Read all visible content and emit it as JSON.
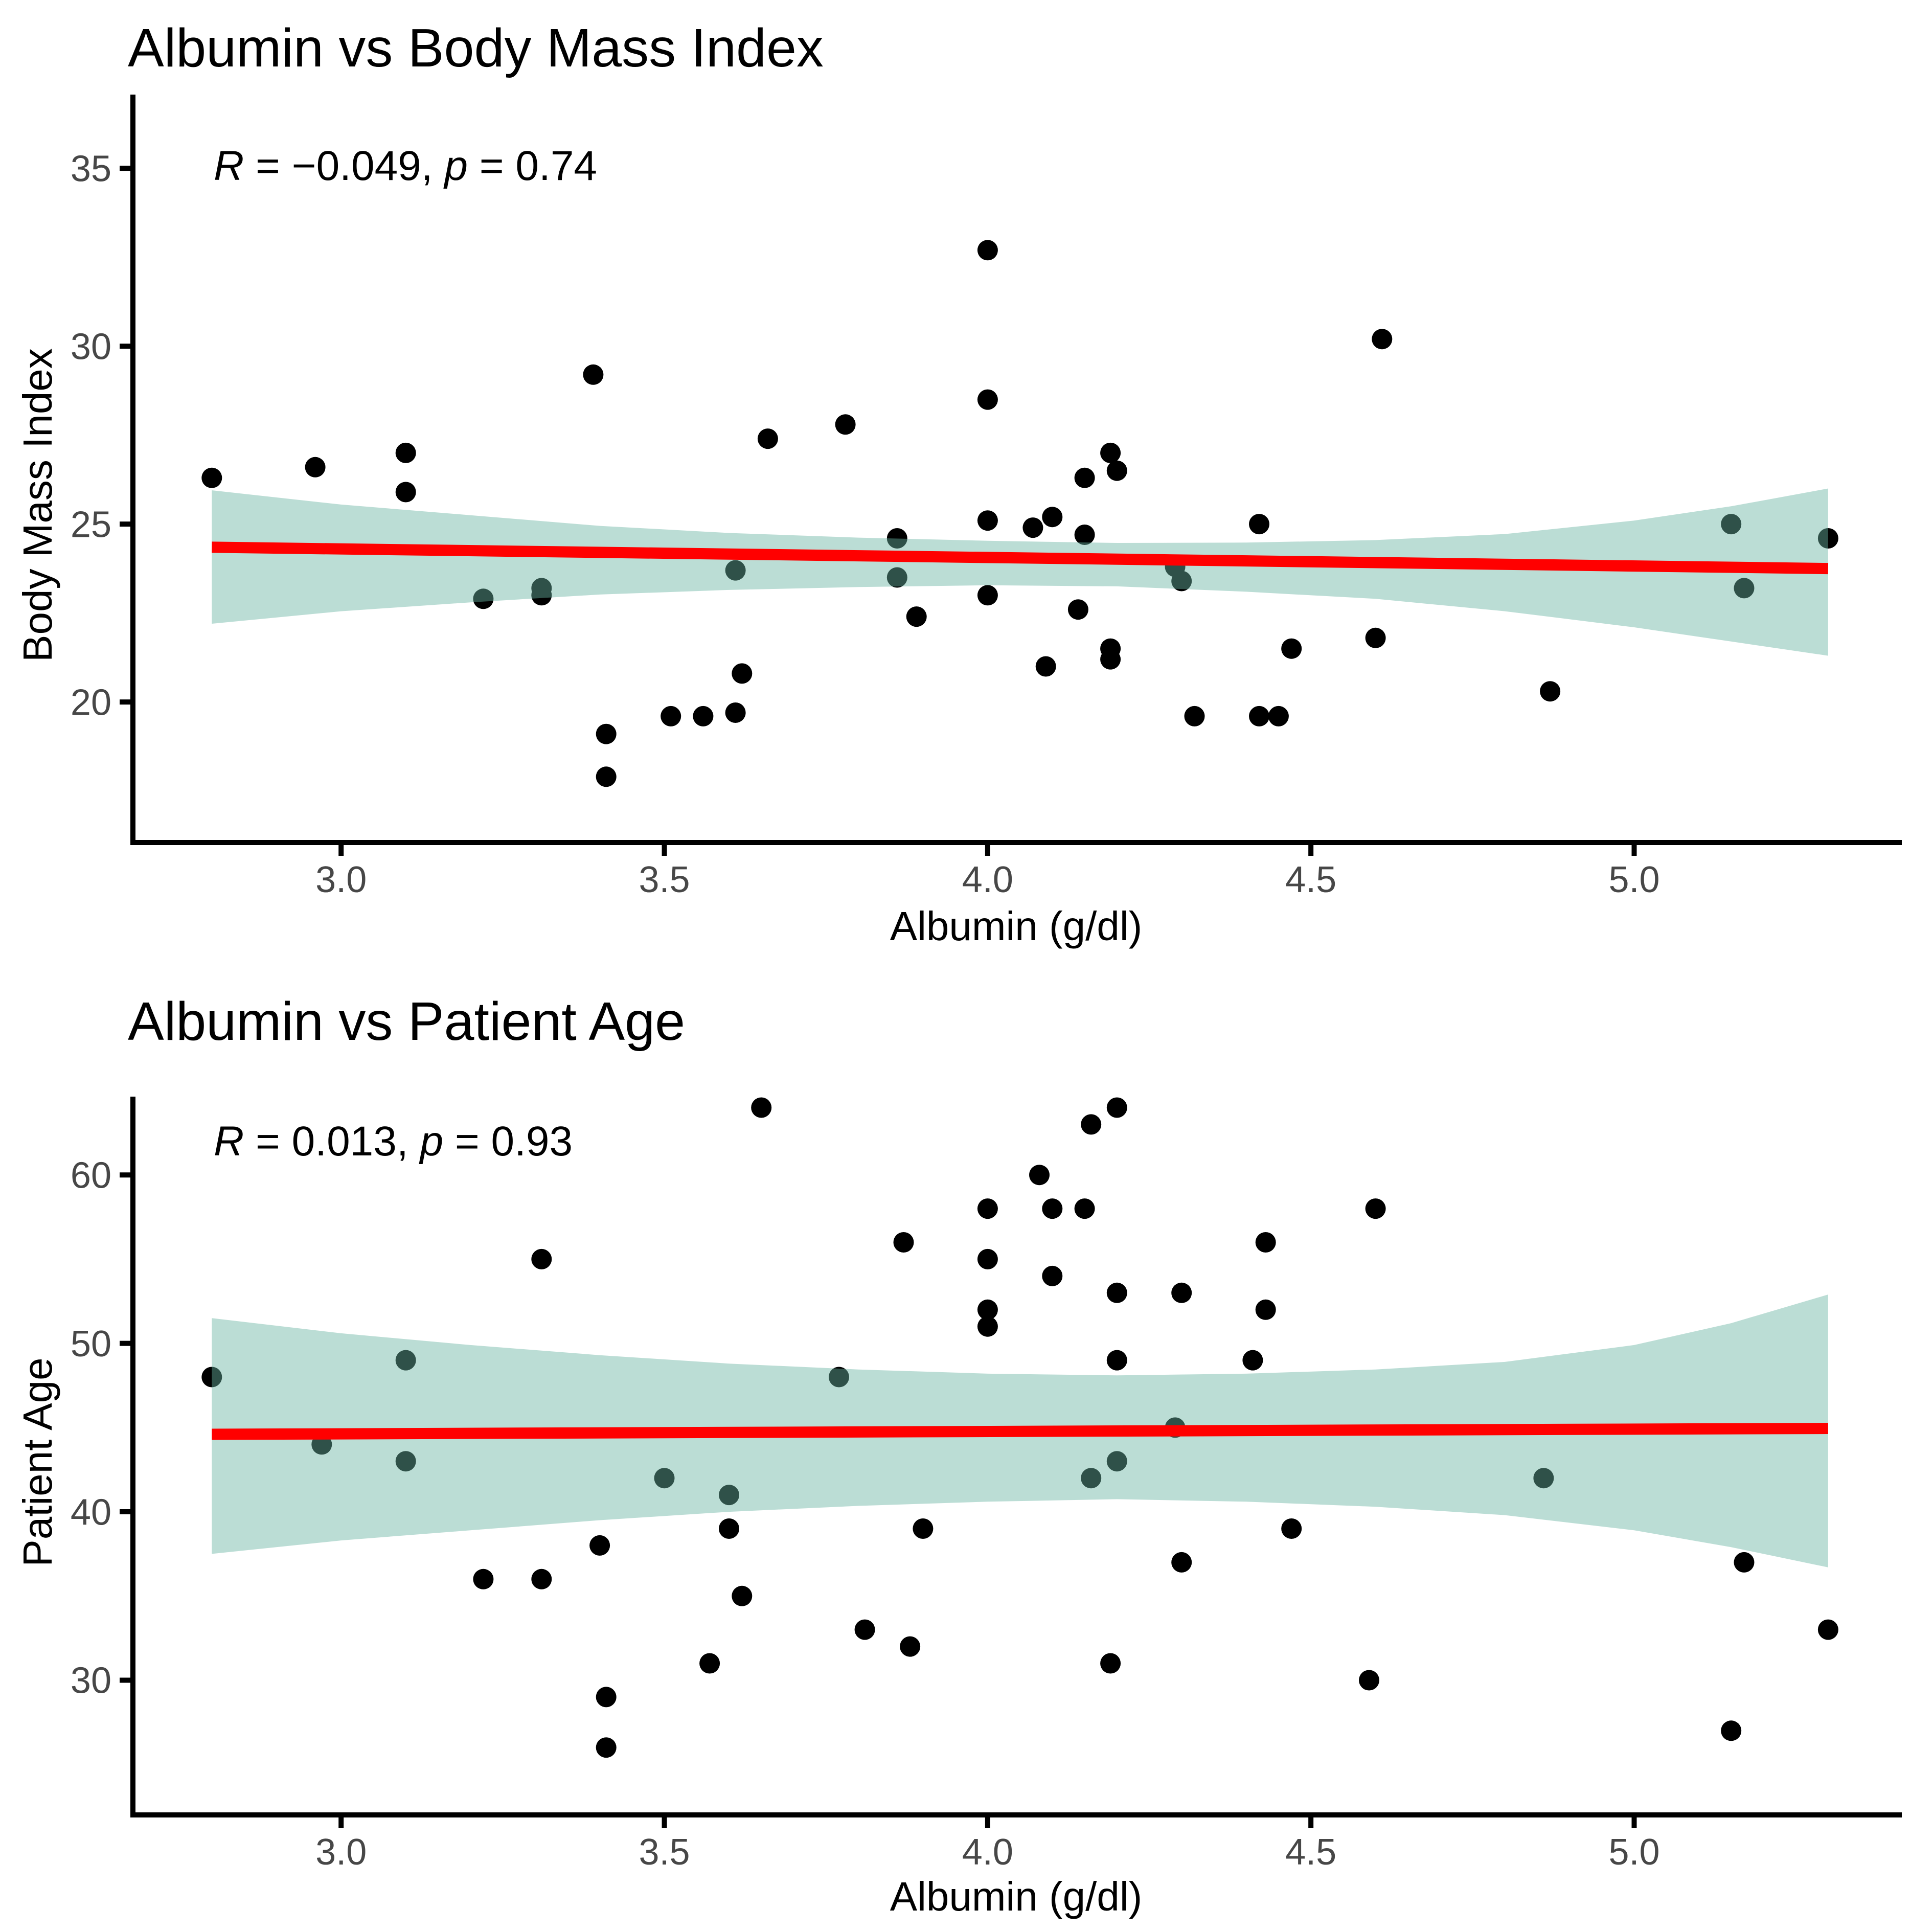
{
  "styles": {
    "background": "#ffffff",
    "point_color": "#000000",
    "axis_color": "#000000",
    "tick_label_color": "#474747",
    "band_fill": "#69b3a2",
    "trend_color": "#ff0000"
  },
  "chart_data": [
    {
      "type": "scatter",
      "title": "Albumin vs Body Mass Index",
      "xlabel": "Albumin (g/dl)",
      "ylabel": "Body Mass Index",
      "R": -0.049,
      "p": 0.74,
      "annotation": {
        "r_label": "R",
        "r_eq": "= −0.049,",
        "p_label": "p",
        "p_eq": "= 0.74"
      },
      "xlim": [
        2.678,
        5.41
      ],
      "ylim": [
        16.05,
        37.0
      ],
      "grid": false,
      "legend": null,
      "x_ticks": {
        "values": [
          3.0,
          3.5,
          4.0,
          4.5,
          5.0
        ],
        "labels": [
          "3.0",
          "3.5",
          "4.0",
          "4.5",
          "5.0"
        ]
      },
      "y_ticks": {
        "values": [
          20,
          25,
          30,
          35
        ],
        "labels": [
          "20",
          "25",
          "30",
          "35"
        ]
      },
      "points": [
        [
          2.8,
          26.3
        ],
        [
          2.96,
          26.6
        ],
        [
          3.1,
          27.0
        ],
        [
          3.1,
          25.9
        ],
        [
          3.22,
          22.9
        ],
        [
          3.31,
          23.2
        ],
        [
          3.31,
          23.0
        ],
        [
          3.39,
          29.2
        ],
        [
          3.41,
          19.1
        ],
        [
          3.41,
          17.9
        ],
        [
          3.51,
          19.6
        ],
        [
          3.56,
          19.6
        ],
        [
          3.61,
          23.7
        ],
        [
          3.61,
          19.7
        ],
        [
          3.62,
          20.8
        ],
        [
          3.66,
          27.4
        ],
        [
          3.78,
          27.8
        ],
        [
          3.86,
          24.6
        ],
        [
          3.86,
          23.5
        ],
        [
          3.89,
          22.4
        ],
        [
          4.0,
          32.7
        ],
        [
          4.0,
          28.5
        ],
        [
          4.0,
          25.1
        ],
        [
          4.0,
          23.0
        ],
        [
          4.07,
          24.9
        ],
        [
          4.1,
          25.2
        ],
        [
          4.09,
          21.0
        ],
        [
          4.14,
          22.6
        ],
        [
          4.15,
          24.7
        ],
        [
          4.15,
          26.3
        ],
        [
          4.19,
          21.5
        ],
        [
          4.19,
          21.2
        ],
        [
          4.19,
          27.0
        ],
        [
          4.2,
          26.5
        ],
        [
          4.29,
          23.8
        ],
        [
          4.3,
          23.4
        ],
        [
          4.32,
          19.6
        ],
        [
          4.42,
          25.0
        ],
        [
          4.42,
          19.6
        ],
        [
          4.45,
          19.6
        ],
        [
          4.47,
          21.5
        ],
        [
          4.6,
          21.8
        ],
        [
          4.61,
          30.2
        ],
        [
          4.87,
          20.3
        ],
        [
          5.15,
          25.0
        ],
        [
          5.17,
          23.2
        ],
        [
          5.3,
          24.6
        ]
      ],
      "trend_line": {
        "x": [
          2.8,
          5.3
        ],
        "y": [
          24.35,
          23.75
        ]
      },
      "confidence_band": {
        "opacity": 0.45,
        "x": [
          2.8,
          3.0,
          3.2,
          3.4,
          3.6,
          3.8,
          4.0,
          4.2,
          4.4,
          4.6,
          4.8,
          5.0,
          5.15,
          5.3
        ],
        "upper": [
          25.95,
          25.55,
          25.25,
          24.95,
          24.75,
          24.62,
          24.53,
          24.47,
          24.48,
          24.55,
          24.72,
          25.1,
          25.5,
          26.0
        ],
        "lower": [
          22.2,
          22.55,
          22.8,
          23.02,
          23.15,
          23.23,
          23.28,
          23.25,
          23.1,
          22.9,
          22.55,
          22.1,
          21.7,
          21.3
        ]
      }
    },
    {
      "type": "scatter",
      "title": "Albumin vs Patient Age",
      "xlabel": "Albumin (g/dl)",
      "ylabel": "Patient Age",
      "R": 0.013,
      "p": 0.93,
      "annotation": {
        "r_label": "R",
        "r_eq": "= 0.013,",
        "p_label": "p",
        "p_eq": "= 0.93"
      },
      "xlim": [
        2.678,
        5.41
      ],
      "ylim": [
        22.0,
        64.5
      ],
      "grid": false,
      "legend": null,
      "x_ticks": {
        "values": [
          3.0,
          3.5,
          4.0,
          4.5,
          5.0
        ],
        "labels": [
          "3.0",
          "3.5",
          "4.0",
          "4.5",
          "5.0"
        ]
      },
      "y_ticks": {
        "values": [
          30,
          40,
          50,
          60
        ],
        "labels": [
          "30",
          "40",
          "50",
          "60"
        ]
      },
      "points": [
        [
          2.8,
          48
        ],
        [
          2.97,
          44
        ],
        [
          3.1,
          49
        ],
        [
          3.1,
          43
        ],
        [
          3.22,
          36
        ],
        [
          3.31,
          55
        ],
        [
          3.31,
          36
        ],
        [
          3.4,
          38
        ],
        [
          3.41,
          29
        ],
        [
          3.41,
          26
        ],
        [
          3.5,
          42
        ],
        [
          3.57,
          31
        ],
        [
          3.6,
          41
        ],
        [
          3.6,
          39
        ],
        [
          3.62,
          35
        ],
        [
          3.65,
          64
        ],
        [
          3.77,
          48
        ],
        [
          3.81,
          33
        ],
        [
          3.87,
          56
        ],
        [
          3.88,
          32
        ],
        [
          3.9,
          39
        ],
        [
          4.0,
          58
        ],
        [
          4.0,
          55
        ],
        [
          4.0,
          52
        ],
        [
          4.0,
          51
        ],
        [
          4.08,
          60
        ],
        [
          4.1,
          58
        ],
        [
          4.1,
          54
        ],
        [
          4.15,
          58
        ],
        [
          4.16,
          63
        ],
        [
          4.16,
          42
        ],
        [
          4.19,
          31
        ],
        [
          4.2,
          64
        ],
        [
          4.2,
          53
        ],
        [
          4.2,
          49
        ],
        [
          4.2,
          43
        ],
        [
          4.29,
          45
        ],
        [
          4.3,
          53
        ],
        [
          4.3,
          37
        ],
        [
          4.41,
          49
        ],
        [
          4.43,
          56
        ],
        [
          4.43,
          52
        ],
        [
          4.47,
          39
        ],
        [
          4.59,
          30
        ],
        [
          4.6,
          58
        ],
        [
          4.86,
          42
        ],
        [
          5.15,
          27
        ],
        [
          5.17,
          37
        ],
        [
          5.3,
          33
        ]
      ],
      "trend_line": {
        "x": [
          2.8,
          5.3
        ],
        "y": [
          44.6,
          44.95
        ]
      },
      "confidence_band": {
        "opacity": 0.45,
        "x": [
          2.8,
          3.0,
          3.2,
          3.4,
          3.6,
          3.8,
          4.0,
          4.2,
          4.4,
          4.6,
          4.8,
          5.0,
          5.15,
          5.3
        ],
        "upper": [
          51.5,
          50.6,
          49.9,
          49.3,
          48.8,
          48.45,
          48.2,
          48.1,
          48.2,
          48.45,
          48.9,
          49.9,
          51.2,
          52.9
        ],
        "lower": [
          37.5,
          38.3,
          38.9,
          39.5,
          40.0,
          40.35,
          40.6,
          40.75,
          40.6,
          40.3,
          39.8,
          38.9,
          37.9,
          36.7
        ]
      }
    }
  ]
}
